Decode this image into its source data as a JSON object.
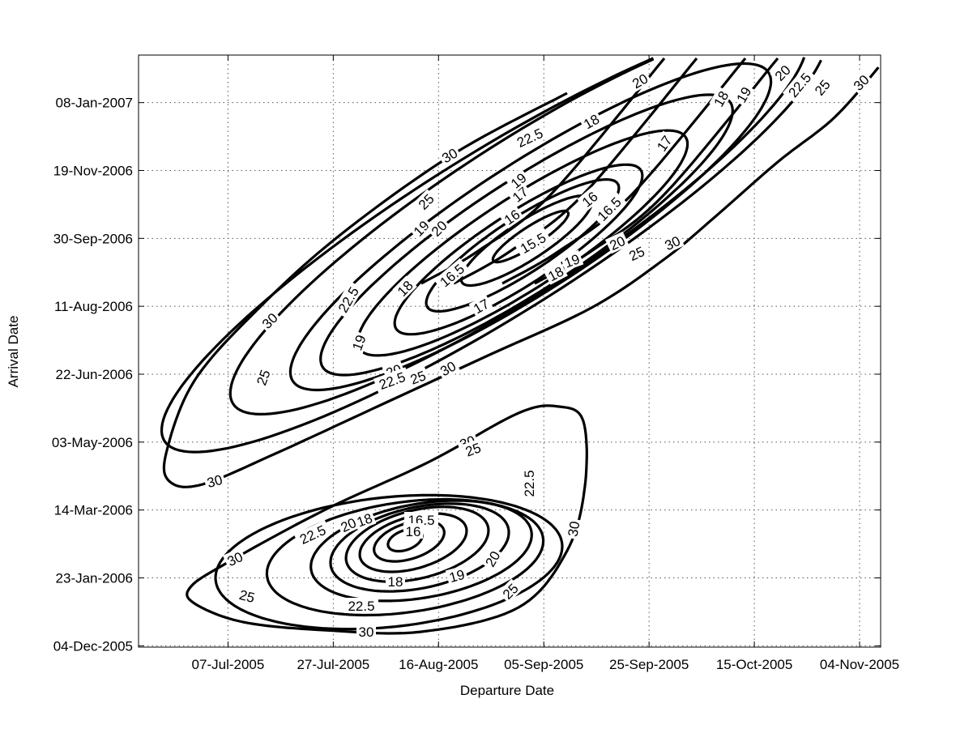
{
  "chart_data": {
    "type": "contour",
    "xlabel": "Departure Date",
    "ylabel": "Arrival Date",
    "x_ticks": [
      "07-Jul-2005",
      "27-Jul-2005",
      "16-Aug-2005",
      "05-Sep-2005",
      "25-Sep-2005",
      "15-Oct-2005",
      "04-Nov-2005"
    ],
    "y_ticks": [
      "04-Dec-2005",
      "23-Jan-2006",
      "14-Mar-2006",
      "03-May-2006",
      "22-Jun-2006",
      "11-Aug-2006",
      "30-Sep-2006",
      "19-Nov-2006",
      "08-Jan-2007"
    ],
    "xlim": [
      "2005-06-20",
      "2005-11-08"
    ],
    "ylim": [
      "2005-12-03",
      "2007-02-12"
    ],
    "grid": true,
    "contour_levels": [
      15.5,
      16,
      16.5,
      17,
      18,
      19,
      20,
      22.5,
      25,
      30
    ],
    "regions": [
      {
        "name": "",
        "minimum": {
          "departure": "2005-08-28",
          "arrival": "2006-10-02",
          "value": 15.5
        },
        "levels_labeled": [
          "15.5",
          "16",
          "16.5",
          "17",
          "18",
          "19",
          "20",
          "22.5",
          "25",
          "30"
        ]
      },
      {
        "name": "",
        "minimum": {
          "departure": "2005-08-08",
          "arrival": "2006-02-26",
          "value": 16
        },
        "levels_labeled": [
          "16",
          "16.5",
          "17",
          "18",
          "19",
          "20",
          "22.5",
          "25",
          "30"
        ]
      }
    ],
    "color": "#000000"
  }
}
